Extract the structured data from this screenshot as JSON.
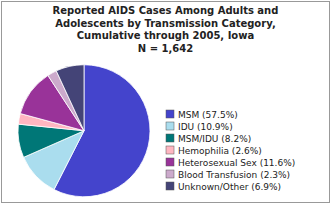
{
  "chart_data": {
    "type": "pie",
    "title": "Reported AIDS Cases Among Adults and\nAdolescents by Transmission Category,\nCumulative through 2005, Iowa\nN = 1,642",
    "categories": [
      "MSM (57.5%)",
      "IDU (10.9%)",
      "MSM/IDU (8.2%)",
      "Hemophilia (2.6%)",
      "Heterosexual Sex (11.6%)",
      "Blood Transfusion (2.3%)",
      "Unknown/Other (6.9%)"
    ],
    "values": [
      57.5,
      10.9,
      8.2,
      2.6,
      11.6,
      2.3,
      6.9
    ],
    "colors": [
      "#4444CC",
      "#AADDEE",
      "#007777",
      "#FFB6C1",
      "#993399",
      "#CCAACC",
      "#444477"
    ],
    "legend": "right"
  }
}
